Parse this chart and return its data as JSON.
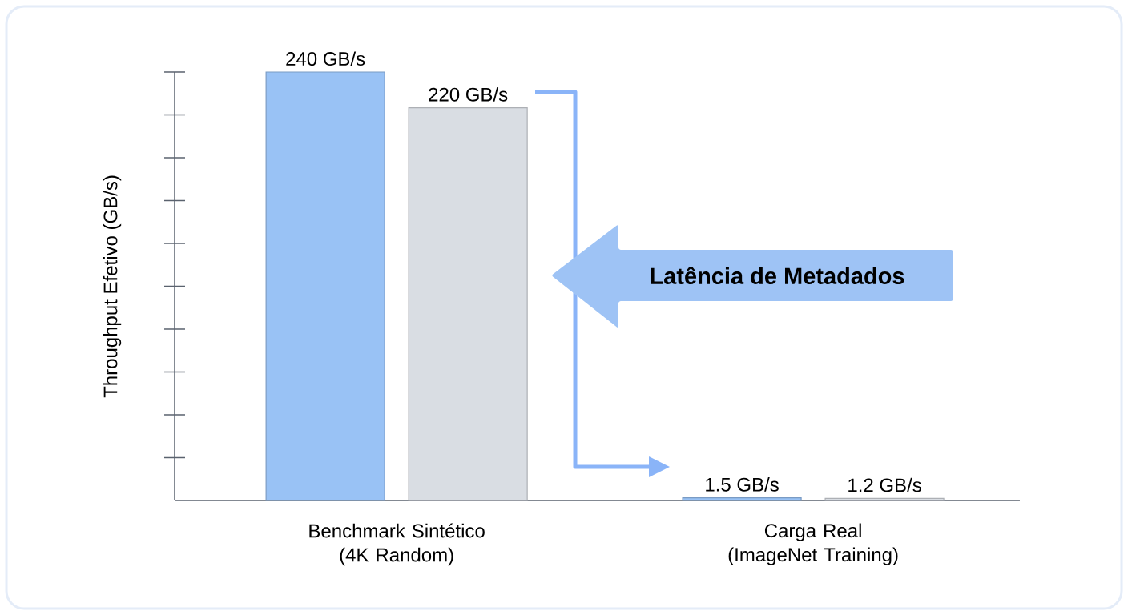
{
  "chart_data": {
    "type": "bar",
    "ylabel": "Throughput Efetivo (GB/s)",
    "categories": [
      "Benchmark Sintético (4K Random)",
      "Carga Real (ImageNet Training)"
    ],
    "series": [
      {
        "color": "#99c2f5",
        "values": [
          240,
          1.5
        ],
        "value_labels": [
          "240 GB/s",
          "1.5 GB/s"
        ]
      },
      {
        "color": "#d9dde3",
        "values": [
          220,
          1.2
        ],
        "value_labels": [
          "220 GB/s",
          "1.2 GB/s"
        ]
      }
    ],
    "tick_labels": "x",
    "annotations": [
      "Latência de Metadados"
    ]
  }
}
